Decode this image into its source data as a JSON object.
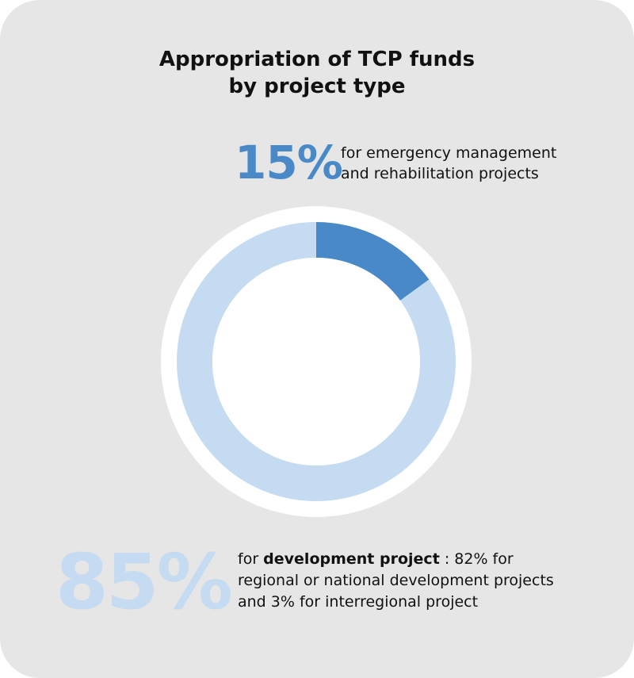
{
  "title_lines": [
    "Appropriation of TCP funds",
    "by project type"
  ],
  "top_callout": {
    "percent": "15%",
    "lines": [
      "for emergency management",
      "and rehabilitation projects"
    ]
  },
  "bottom_callout": {
    "percent": "85%",
    "line1_prefix": "for ",
    "line1_bold": "development project",
    "line1_suffix": " : 82% for",
    "line2": "regional or national development projects",
    "line3": "and 3% for interregional project"
  },
  "colors": {
    "card_background": "#e6e6e6",
    "emergency": "#4a89c8",
    "development": "#c4dbf1",
    "donut_ring_background": "#ffffff"
  },
  "chart_data": {
    "type": "pie",
    "title": "Appropriation of TCP funds by project type",
    "categories": [
      "emergency management and rehabilitation projects",
      "development project"
    ],
    "values": [
      15,
      85
    ],
    "unit": "%",
    "colors": [
      "#4a89c8",
      "#c4dbf1"
    ],
    "donut": true
  }
}
